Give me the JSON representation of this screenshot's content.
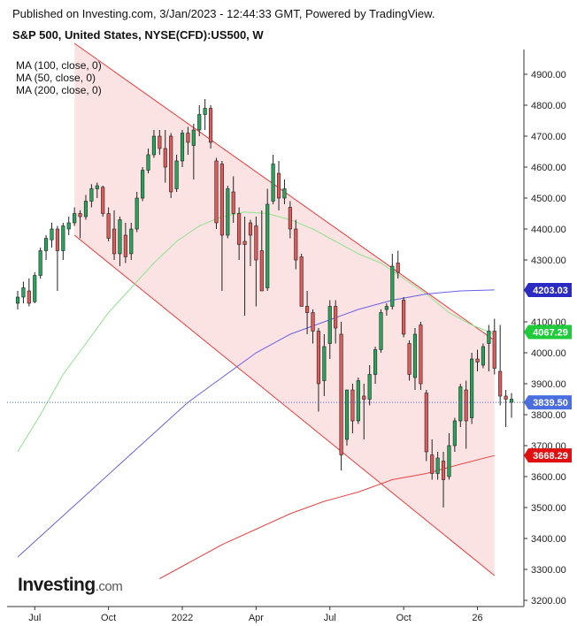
{
  "header": {
    "published": "Published on Investing.com, 3/Jan/2023 - 12:44:33 GMT, Powered by TradingView.",
    "symbol": "S&P 500, United States, NYSE(CFD):US500, W"
  },
  "legend": [
    {
      "label": "MA (100, close, 0)",
      "color": "#4d4de8"
    },
    {
      "label": "MA (50, close, 0)",
      "color": "#7ddf7d"
    },
    {
      "label": "MA (200, close, 0)",
      "color": "#ef4444"
    }
  ],
  "logo": {
    "main": "Investing",
    "suffix": ".com"
  },
  "colors": {
    "up": "#26a65b",
    "down": "#e05a5a",
    "channel_fill": "#fbe0e0",
    "channel_line": "#ee3b3b",
    "price_line": "#3a5bd9"
  },
  "chart_data": {
    "type": "candlestick",
    "ylim": [
      3180,
      4980
    ],
    "y_ticks": [
      "4900.00",
      "4800.00",
      "4700.00",
      "4600.00",
      "4500.00",
      "4400.00",
      "4300.00",
      "4200.00",
      "4100.00",
      "4000.00",
      "3900.00",
      "3800.00",
      "3700.00",
      "3600.00",
      "3500.00",
      "3400.00",
      "3300.00",
      "3200.00"
    ],
    "x_ticks": [
      {
        "label": "Jul",
        "index": 3
      },
      {
        "label": "Oct",
        "index": 16
      },
      {
        "label": "2022",
        "index": 29
      },
      {
        "label": "Apr",
        "index": 42
      },
      {
        "label": "Jul",
        "index": 55
      },
      {
        "label": "Oct",
        "index": 68
      },
      {
        "label": "26",
        "index": 81
      }
    ],
    "index_range": [
      0,
      87
    ],
    "price_tags": [
      {
        "label": "4203.03",
        "value": 4203.03,
        "color": "#2b2bc4",
        "series": "MA 100"
      },
      {
        "label": "4067.29",
        "value": 4067.29,
        "color": "#1fcb3a",
        "series": "MA 50"
      },
      {
        "label": "3839.50",
        "value": 3839.5,
        "color": "#4a6ee0",
        "series": "Last price"
      },
      {
        "label": "3668.29",
        "value": 3668.29,
        "color": "#e01010",
        "series": "MA 200"
      }
    ],
    "last_price": 3839.5,
    "channel": {
      "upper": [
        {
          "i": 10,
          "v": 5000
        },
        {
          "i": 84,
          "v": 4040
        }
      ],
      "lower": [
        {
          "i": 10,
          "v": 4380
        },
        {
          "i": 84,
          "v": 3280
        }
      ]
    },
    "candles": [
      {
        "o": 4160,
        "h": 4200,
        "l": 4140,
        "c": 4180
      },
      {
        "o": 4180,
        "h": 4230,
        "l": 4160,
        "c": 4210
      },
      {
        "o": 4200,
        "h": 4240,
        "l": 4150,
        "c": 4160
      },
      {
        "o": 4165,
        "h": 4260,
        "l": 4160,
        "c": 4250
      },
      {
        "o": 4250,
        "h": 4340,
        "l": 4240,
        "c": 4330
      },
      {
        "o": 4330,
        "h": 4380,
        "l": 4300,
        "c": 4370
      },
      {
        "o": 4365,
        "h": 4420,
        "l": 4340,
        "c": 4400
      },
      {
        "o": 4400,
        "h": 4410,
        "l": 4200,
        "c": 4330
      },
      {
        "o": 4330,
        "h": 4420,
        "l": 4300,
        "c": 4410
      },
      {
        "o": 4400,
        "h": 4440,
        "l": 4380,
        "c": 4420
      },
      {
        "o": 4420,
        "h": 4470,
        "l": 4410,
        "c": 4450
      },
      {
        "o": 4450,
        "h": 4460,
        "l": 4370,
        "c": 4440
      },
      {
        "o": 4440,
        "h": 4510,
        "l": 4430,
        "c": 4490
      },
      {
        "o": 4490,
        "h": 4545,
        "l": 4470,
        "c": 4530
      },
      {
        "o": 4530,
        "h": 4550,
        "l": 4500,
        "c": 4540
      },
      {
        "o": 4535,
        "h": 4540,
        "l": 4440,
        "c": 4450
      },
      {
        "o": 4450,
        "h": 4470,
        "l": 4360,
        "c": 4370
      },
      {
        "o": 4400,
        "h": 4460,
        "l": 4300,
        "c": 4320
      },
      {
        "o": 4320,
        "h": 4440,
        "l": 4280,
        "c": 4430
      },
      {
        "o": 4380,
        "h": 4420,
        "l": 4290,
        "c": 4310
      },
      {
        "o": 4320,
        "h": 4420,
        "l": 4300,
        "c": 4400
      },
      {
        "o": 4400,
        "h": 4520,
        "l": 4390,
        "c": 4500
      },
      {
        "o": 4500,
        "h": 4600,
        "l": 4490,
        "c": 4590
      },
      {
        "o": 4590,
        "h": 4660,
        "l": 4580,
        "c": 4640
      },
      {
        "o": 4640,
        "h": 4720,
        "l": 4630,
        "c": 4700
      },
      {
        "o": 4700,
        "h": 4720,
        "l": 4640,
        "c": 4660
      },
      {
        "o": 4660,
        "h": 4720,
        "l": 4550,
        "c": 4600
      },
      {
        "o": 4700,
        "h": 4710,
        "l": 4500,
        "c": 4520
      },
      {
        "o": 4530,
        "h": 4640,
        "l": 4520,
        "c": 4620
      },
      {
        "o": 4620,
        "h": 4720,
        "l": 4600,
        "c": 4710
      },
      {
        "o": 4710,
        "h": 4730,
        "l": 4640,
        "c": 4680
      },
      {
        "o": 4670,
        "h": 4740,
        "l": 4560,
        "c": 4720
      },
      {
        "o": 4720,
        "h": 4800,
        "l": 4700,
        "c": 4770
      },
      {
        "o": 4770,
        "h": 4820,
        "l": 4720,
        "c": 4790
      },
      {
        "o": 4790,
        "h": 4800,
        "l": 4660,
        "c": 4680
      },
      {
        "o": 4620,
        "h": 4630,
        "l": 4400,
        "c": 4420
      },
      {
        "o": 4610,
        "h": 4620,
        "l": 4200,
        "c": 4380
      },
      {
        "o": 4380,
        "h": 4540,
        "l": 4370,
        "c": 4530
      },
      {
        "o": 4520,
        "h": 4570,
        "l": 4420,
        "c": 4450
      },
      {
        "o": 4450,
        "h": 4470,
        "l": 4300,
        "c": 4350
      },
      {
        "o": 4360,
        "h": 4440,
        "l": 4120,
        "c": 4350
      },
      {
        "o": 4420,
        "h": 4430,
        "l": 4280,
        "c": 4380
      },
      {
        "o": 4410,
        "h": 4440,
        "l": 4150,
        "c": 4300
      },
      {
        "o": 4330,
        "h": 4460,
        "l": 4200,
        "c": 4200
      },
      {
        "o": 4210,
        "h": 4530,
        "l": 4200,
        "c": 4480
      },
      {
        "o": 4490,
        "h": 4640,
        "l": 4480,
        "c": 4610
      },
      {
        "o": 4580,
        "h": 4620,
        "l": 4460,
        "c": 4500
      },
      {
        "o": 4500,
        "h": 4560,
        "l": 4480,
        "c": 4530
      },
      {
        "o": 4470,
        "h": 4490,
        "l": 4370,
        "c": 4400
      },
      {
        "o": 4400,
        "h": 4430,
        "l": 4270,
        "c": 4300
      },
      {
        "o": 4310,
        "h": 4320,
        "l": 4150,
        "c": 4150
      },
      {
        "o": 4150,
        "h": 4200,
        "l": 4060,
        "c": 4130
      },
      {
        "o": 4130,
        "h": 4140,
        "l": 4030,
        "c": 4070
      },
      {
        "o": 4070,
        "h": 4080,
        "l": 3810,
        "c": 3900
      },
      {
        "o": 3910,
        "h": 4060,
        "l": 3860,
        "c": 4020
      },
      {
        "o": 4030,
        "h": 4170,
        "l": 3980,
        "c": 4150
      },
      {
        "o": 4150,
        "h": 4170,
        "l": 4030,
        "c": 4080
      },
      {
        "o": 4060,
        "h": 4100,
        "l": 3620,
        "c": 3670
      },
      {
        "o": 3720,
        "h": 3880,
        "l": 3700,
        "c": 3880
      },
      {
        "o": 3880,
        "h": 3900,
        "l": 3740,
        "c": 3780
      },
      {
        "o": 3780,
        "h": 3920,
        "l": 3770,
        "c": 3910
      },
      {
        "o": 3860,
        "h": 3900,
        "l": 3720,
        "c": 3850
      },
      {
        "o": 3850,
        "h": 3960,
        "l": 3830,
        "c": 3930
      },
      {
        "o": 3930,
        "h": 4020,
        "l": 3900,
        "c": 4010
      },
      {
        "o": 4010,
        "h": 4140,
        "l": 4000,
        "c": 4130
      },
      {
        "o": 4140,
        "h": 4160,
        "l": 4120,
        "c": 4150
      },
      {
        "o": 4150,
        "h": 4320,
        "l": 4140,
        "c": 4280
      },
      {
        "o": 4290,
        "h": 4330,
        "l": 4240,
        "c": 4260
      },
      {
        "o": 4170,
        "h": 4180,
        "l": 4050,
        "c": 4060
      },
      {
        "o": 4030,
        "h": 4040,
        "l": 3910,
        "c": 3930
      },
      {
        "o": 3920,
        "h": 4080,
        "l": 3880,
        "c": 4060
      },
      {
        "o": 4090,
        "h": 4100,
        "l": 3880,
        "c": 3900
      },
      {
        "o": 3870,
        "h": 3880,
        "l": 3650,
        "c": 3680
      },
      {
        "o": 3670,
        "h": 3720,
        "l": 3590,
        "c": 3610
      },
      {
        "o": 3610,
        "h": 3680,
        "l": 3590,
        "c": 3660
      },
      {
        "o": 3650,
        "h": 3680,
        "l": 3500,
        "c": 3590
      },
      {
        "o": 3600,
        "h": 3740,
        "l": 3590,
        "c": 3700
      },
      {
        "o": 3700,
        "h": 3790,
        "l": 3680,
        "c": 3780
      },
      {
        "o": 3780,
        "h": 3900,
        "l": 3760,
        "c": 3890
      },
      {
        "o": 3880,
        "h": 3910,
        "l": 3690,
        "c": 3780
      },
      {
        "o": 3790,
        "h": 4000,
        "l": 3770,
        "c": 3980
      },
      {
        "o": 3980,
        "h": 4010,
        "l": 3940,
        "c": 3970
      },
      {
        "o": 3960,
        "h": 4030,
        "l": 3950,
        "c": 4020
      },
      {
        "o": 4030,
        "h": 4090,
        "l": 3940,
        "c": 4070
      },
      {
        "o": 4070,
        "h": 4110,
        "l": 3930,
        "c": 3950
      },
      {
        "o": 3940,
        "h": 4090,
        "l": 3830,
        "c": 3860
      },
      {
        "o": 3860,
        "h": 3880,
        "l": 3760,
        "c": 3850
      },
      {
        "o": 3840,
        "h": 3870,
        "l": 3790,
        "c": 3850
      }
    ],
    "ma": [
      {
        "name": "MA (50, close, 0)",
        "color": "#8fe38f",
        "points": [
          [
            0,
            3680
          ],
          [
            4,
            3800
          ],
          [
            8,
            3930
          ],
          [
            12,
            4030
          ],
          [
            16,
            4130
          ],
          [
            20,
            4210
          ],
          [
            24,
            4290
          ],
          [
            28,
            4360
          ],
          [
            32,
            4410
          ],
          [
            36,
            4440
          ],
          [
            40,
            4455
          ],
          [
            44,
            4450
          ],
          [
            48,
            4430
          ],
          [
            52,
            4400
          ],
          [
            56,
            4360
          ],
          [
            60,
            4320
          ],
          [
            64,
            4290
          ],
          [
            68,
            4240
          ],
          [
            72,
            4190
          ],
          [
            76,
            4130
          ],
          [
            80,
            4090
          ],
          [
            84,
            4060
          ]
        ]
      },
      {
        "name": "MA (100, close, 0)",
        "color": "#6a5fe8",
        "points": [
          [
            0,
            3340
          ],
          [
            6,
            3440
          ],
          [
            12,
            3540
          ],
          [
            18,
            3640
          ],
          [
            24,
            3740
          ],
          [
            30,
            3840
          ],
          [
            36,
            3920
          ],
          [
            42,
            4000
          ],
          [
            48,
            4060
          ],
          [
            54,
            4100
          ],
          [
            60,
            4140
          ],
          [
            66,
            4170
          ],
          [
            72,
            4190
          ],
          [
            78,
            4200
          ],
          [
            84,
            4203
          ]
        ]
      },
      {
        "name": "MA (200, close, 0)",
        "color": "#e84545",
        "points": [
          [
            25,
            3270
          ],
          [
            30,
            3320
          ],
          [
            36,
            3380
          ],
          [
            42,
            3430
          ],
          [
            48,
            3480
          ],
          [
            54,
            3520
          ],
          [
            60,
            3550
          ],
          [
            66,
            3590
          ],
          [
            72,
            3610
          ],
          [
            78,
            3640
          ],
          [
            84,
            3668
          ]
        ]
      }
    ]
  }
}
